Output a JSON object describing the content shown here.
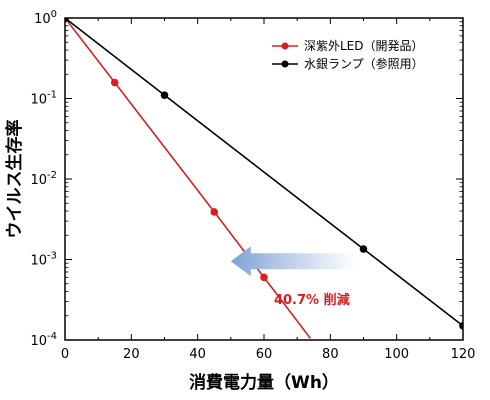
{
  "chart_data": {
    "type": "line",
    "xlabel": "消費電力量（Wh）",
    "ylabel": "ウイルス生存率",
    "xlim": [
      0,
      120
    ],
    "ylim": [
      0.0001,
      1
    ],
    "yscale": "log",
    "x_ticks": [
      "0",
      "20",
      "40",
      "60",
      "80",
      "100",
      "120"
    ],
    "y_ticks": [
      {
        "base": "10",
        "exp": "0"
      },
      {
        "base": "10",
        "exp": "-1"
      },
      {
        "base": "10",
        "exp": "-2"
      },
      {
        "base": "10",
        "exp": "-3"
      },
      {
        "base": "10",
        "exp": "-4"
      }
    ],
    "legend_position": "top-right",
    "series": [
      {
        "name": "深紫外LED（開発品）",
        "color": "#d62020",
        "x": [
          0,
          15,
          45,
          60
        ],
        "y": [
          1,
          0.158,
          0.0039,
          0.0006
        ],
        "fit_to_x": 74
      },
      {
        "name": "水銀ランプ（参照用）",
        "color": "#000000",
        "x": [
          0,
          30,
          90,
          120
        ],
        "y": [
          1,
          0.11,
          0.00135,
          0.00015
        ]
      }
    ],
    "annotation": {
      "text": "40.7%  削減",
      "color": "#d62020",
      "arrow_color": "#9fb8dc",
      "arrow_from_x": 88,
      "arrow_to_x": 50,
      "arrow_y": 0.00095,
      "text_x": 63,
      "text_y": 0.00028
    }
  }
}
